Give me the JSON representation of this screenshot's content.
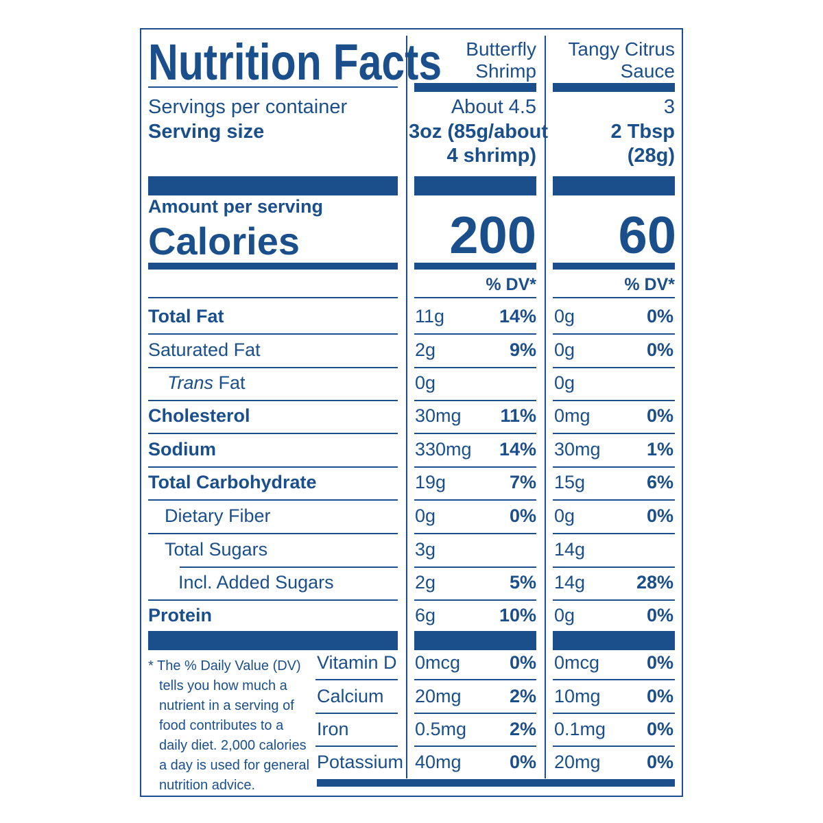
{
  "title": "Nutrition Facts",
  "columns": {
    "shrimp": {
      "heading_line1": "Butterfly",
      "heading_line2": "Shrimp",
      "servings": "About 4.5",
      "serving_size_line1": "3oz (85g/about",
      "serving_size_line2": "4 shrimp)",
      "calories": "200",
      "dv_header": "% DV*"
    },
    "sauce": {
      "heading_line1": "Tangy Citrus",
      "heading_line2": "Sauce",
      "servings": "3",
      "serving_size_line1": "2 Tbsp",
      "serving_size_line2": "(28g)",
      "calories": "60",
      "dv_header": "% DV*"
    }
  },
  "servings_label": "Servings per container",
  "serving_size_label": "Serving size",
  "amount_per_serving": "Amount per serving",
  "calories_label": "Calories",
  "nutrients": [
    {
      "label": "Total Fat",
      "shrimp_amt": "11g",
      "shrimp_dv": "14%",
      "sauce_amt": "0g",
      "sauce_dv": "0%"
    },
    {
      "label": "Saturated Fat",
      "shrimp_amt": "2g",
      "shrimp_dv": "9%",
      "sauce_amt": "0g",
      "sauce_dv": "0%"
    },
    {
      "label_italic": "Trans",
      "label_rest": " Fat",
      "shrimp_amt": "0g",
      "shrimp_dv": "",
      "sauce_amt": "0g",
      "sauce_dv": ""
    },
    {
      "label": "Cholesterol",
      "shrimp_amt": "30mg",
      "shrimp_dv": "11%",
      "sauce_amt": "0mg",
      "sauce_dv": "0%"
    },
    {
      "label": "Sodium",
      "shrimp_amt": "330mg",
      "shrimp_dv": "14%",
      "sauce_amt": "30mg",
      "sauce_dv": "1%"
    },
    {
      "label": "Total Carbohydrate",
      "shrimp_amt": "19g",
      "shrimp_dv": "7%",
      "sauce_amt": "15g",
      "sauce_dv": "6%"
    },
    {
      "label": "Dietary Fiber",
      "shrimp_amt": "0g",
      "shrimp_dv": "0%",
      "sauce_amt": "0g",
      "sauce_dv": "0%"
    },
    {
      "label": "Total Sugars",
      "shrimp_amt": "3g",
      "shrimp_dv": "",
      "sauce_amt": "14g",
      "sauce_dv": ""
    },
    {
      "label": "Incl. Added Sugars",
      "shrimp_amt": "2g",
      "shrimp_dv": "5%",
      "sauce_amt": "14g",
      "sauce_dv": "28%"
    },
    {
      "label": "Protein",
      "shrimp_amt": "6g",
      "shrimp_dv": "10%",
      "sauce_amt": "0g",
      "sauce_dv": "0%"
    }
  ],
  "vitamins": [
    {
      "label": "Vitamin D",
      "shrimp_amt": "0mcg",
      "shrimp_dv": "0%",
      "sauce_amt": "0mcg",
      "sauce_dv": "0%"
    },
    {
      "label": "Calcium",
      "shrimp_amt": "20mg",
      "shrimp_dv": "2%",
      "sauce_amt": "10mg",
      "sauce_dv": "0%"
    },
    {
      "label": "Iron",
      "shrimp_amt": "0.5mg",
      "shrimp_dv": "2%",
      "sauce_amt": "0.1mg",
      "sauce_dv": "0%"
    },
    {
      "label": "Potassium",
      "shrimp_amt": "40mg",
      "shrimp_dv": "0%",
      "sauce_amt": "20mg",
      "sauce_dv": "0%"
    }
  ],
  "footnote_lines": [
    "* The % Daily Value (DV)",
    "tells you how much a",
    "nutrient in a serving of",
    "food contributes to a",
    "daily diet. 2,000 calories",
    "a day is used for general",
    "nutrition advice."
  ],
  "colors": {
    "ink": "#1a4f8b",
    "background": "#ffffff"
  }
}
